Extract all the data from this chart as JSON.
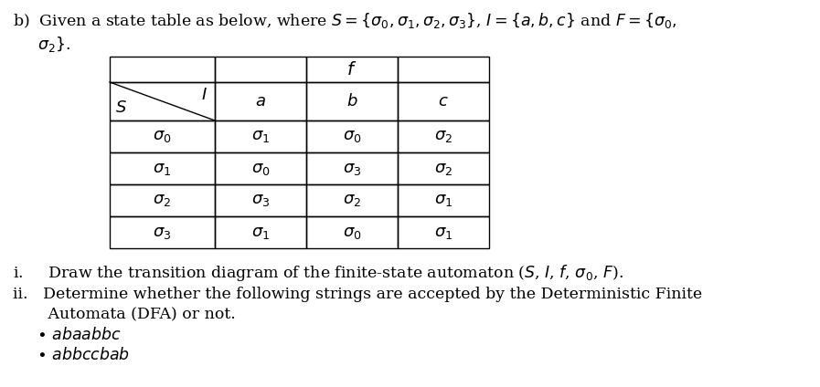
{
  "title_line1": "b)  Given a state table as below, where $S = \\{\\sigma_0, \\sigma_1, \\sigma_2, \\sigma_3\\}$, $I = \\{a, b, c\\}$ and $F = \\{\\sigma_0,$",
  "title_line2": "     $\\sigma_2\\}$.",
  "header_f": "$f$",
  "col_I": "$I$",
  "col_a": "$a$",
  "col_b": "$b$",
  "col_c": "$c$",
  "row_S": "$S$",
  "states": [
    "$\\sigma_0$",
    "$\\sigma_1$",
    "$\\sigma_2$",
    "$\\sigma_3$"
  ],
  "transitions": [
    [
      "$\\sigma_1$",
      "$\\sigma_0$",
      "$\\sigma_2$"
    ],
    [
      "$\\sigma_0$",
      "$\\sigma_3$",
      "$\\sigma_2$"
    ],
    [
      "$\\sigma_3$",
      "$\\sigma_2$",
      "$\\sigma_1$"
    ],
    [
      "$\\sigma_1$",
      "$\\sigma_0$",
      "$\\sigma_1$"
    ]
  ],
  "point_i": "i.     Draw the transition diagram of the finite-state automaton ($S$, $I$, $f$, $\\sigma_0$, $F$).",
  "point_ii_1": "ii.   Determine whether the following strings are accepted by the Deterministic Finite",
  "point_ii_2": "       Automata (DFA) or not.",
  "bullet1": "$\\bullet$ $abaabbc$",
  "bullet2": "$\\bullet$ $abbccbab$",
  "bg_color": "#ffffff",
  "fg_color": "#000000",
  "font_size": 12.5,
  "table_font_size": 13
}
